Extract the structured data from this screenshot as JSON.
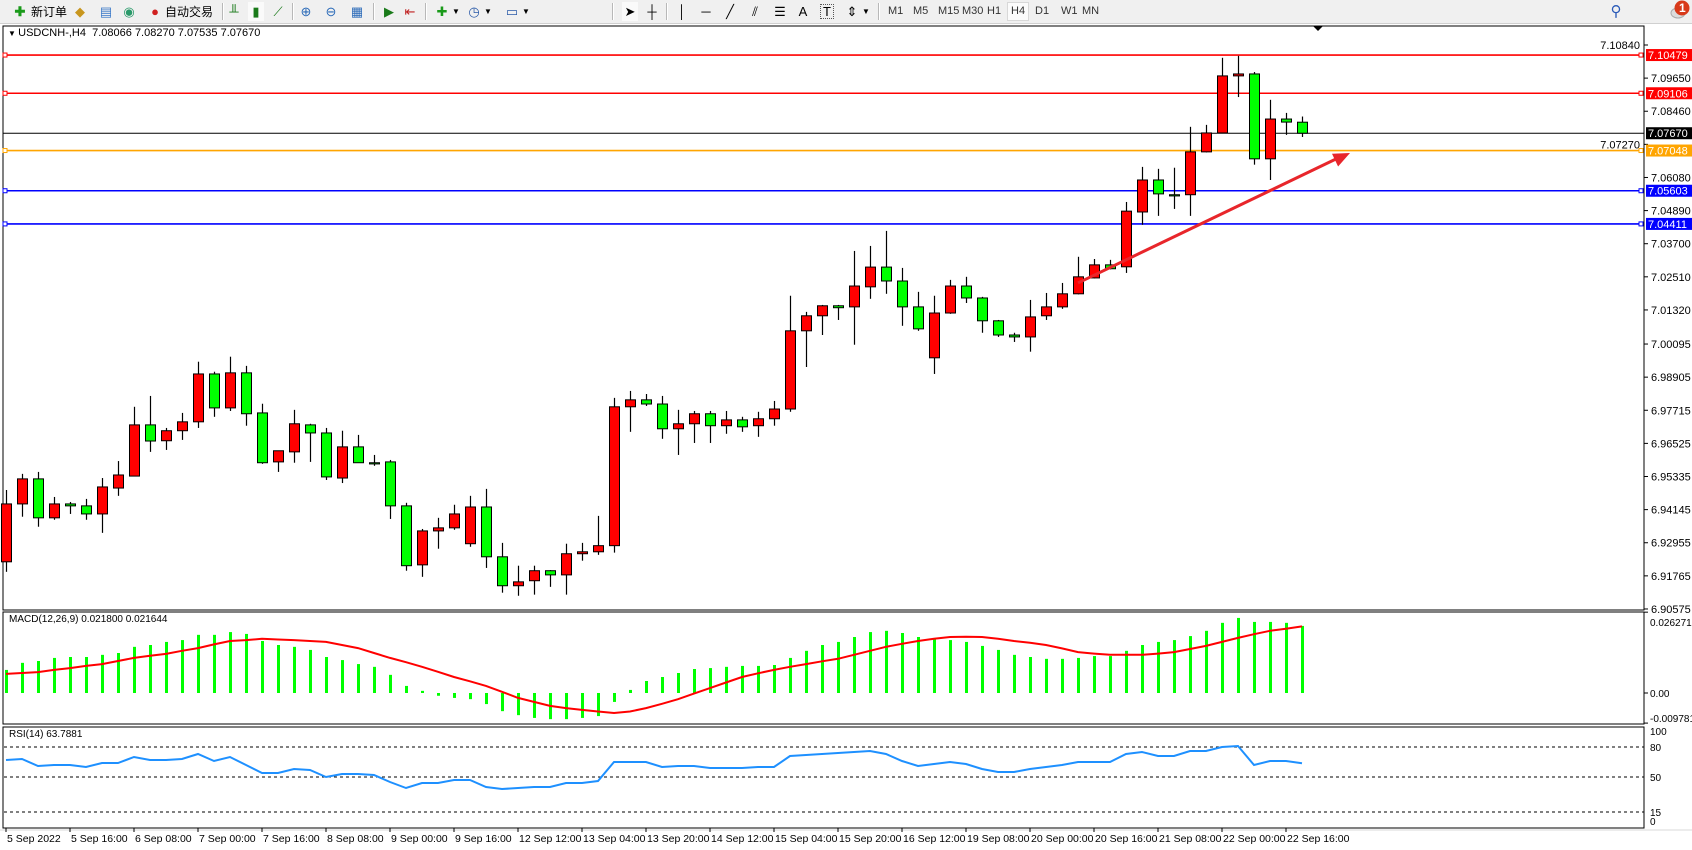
{
  "toolbar": {
    "new_order_label": "新订单",
    "autotrade_label": "自动交易",
    "timeframes": [
      "M1",
      "M5",
      "M15",
      "M30",
      "H1",
      "H4",
      "D1",
      "W1",
      "MN"
    ],
    "active_timeframe": "H4",
    "icons": [
      "new-order-icon",
      "gold-icon",
      "data-window-icon",
      "signals-icon",
      "autotrade-icon",
      "bar-chart-icon",
      "candlestick-icon",
      "line-chart-icon",
      "zoom-in-icon",
      "zoom-out-icon",
      "tile-windows-icon",
      "autoscroll-icon",
      "chart-shift-icon",
      "indicators-icon",
      "periods-icon",
      "templates-icon",
      "cursor-icon",
      "crosshair-icon",
      "vertical-line-icon",
      "horizontal-line-icon",
      "trendline-icon",
      "equidistant-channel-icon",
      "fibonacci-icon",
      "text-icon",
      "text-label-icon",
      "arrows-icon",
      "search-icon",
      "notification-icon"
    ]
  },
  "notifications": {
    "count": "1"
  },
  "header": {
    "symbol": "USDCNH-,H4",
    "open": "7.08066",
    "high": "7.08270",
    "low": "7.07535",
    "close": "7.07670"
  },
  "macd_label": "MACD(12,26,9) 0.021800 0.021644",
  "rsi_label": "RSI(14) 63.7881",
  "colors": {
    "bull": "#ff0000",
    "bear": "#00ff00",
    "resistance": "#ff0000",
    "pivot": "#ffa500",
    "support": "#0000ff",
    "macd_hist": "#00ff00",
    "macd_signal": "#ff0000",
    "rsi": "#1e90ff",
    "trend_arrow": "#e8262b"
  },
  "chart_data": {
    "type": "candlestick",
    "symbol": "USDCNH-",
    "timeframe": "H4",
    "candle_format": [
      "open",
      "high",
      "low",
      "close"
    ],
    "candles": [
      [
        6.9227,
        6.9485,
        6.9191,
        6.9435
      ],
      [
        6.9435,
        6.9543,
        6.9389,
        6.9525
      ],
      [
        6.9525,
        6.955,
        6.9353,
        6.9385
      ],
      [
        6.9385,
        6.946,
        6.9378,
        6.9435
      ],
      [
        6.9435,
        6.9442,
        6.9399,
        6.9428
      ],
      [
        6.9428,
        6.9453,
        6.9378,
        6.9399
      ],
      [
        6.9399,
        6.9528,
        6.9331,
        6.9496
      ],
      [
        6.9492,
        6.9589,
        6.9464,
        6.9539
      ],
      [
        6.9535,
        6.9784,
        6.9535,
        6.9719
      ],
      [
        6.9719,
        6.9823,
        6.9622,
        6.9661
      ],
      [
        6.9662,
        6.9708,
        6.9629,
        6.9698
      ],
      [
        6.9698,
        6.9762,
        6.9665,
        6.973
      ],
      [
        6.973,
        6.9946,
        6.9708,
        6.9902
      ],
      [
        6.9902,
        6.991,
        6.9748,
        6.978
      ],
      [
        6.978,
        6.9964,
        6.9769,
        6.9906
      ],
      [
        6.9906,
        6.9931,
        6.9716,
        6.9759
      ],
      [
        6.9762,
        6.9795,
        6.9579,
        6.9583
      ],
      [
        6.9586,
        6.9626,
        6.955,
        6.9626
      ],
      [
        6.9622,
        6.9773,
        6.9583,
        6.9723
      ],
      [
        6.9719,
        6.9723,
        6.9586,
        6.969
      ],
      [
        6.969,
        6.9708,
        6.9521,
        6.9532
      ],
      [
        6.9528,
        6.9698,
        6.951,
        6.964
      ],
      [
        6.964,
        6.9683,
        6.9583,
        6.9583
      ],
      [
        6.9583,
        6.9611,
        6.9572,
        6.9581
      ],
      [
        6.9586,
        6.9593,
        6.9381,
        6.9428
      ],
      [
        6.9428,
        6.9439,
        6.9195,
        6.9213
      ],
      [
        6.9216,
        6.9345,
        6.9173,
        6.9338
      ],
      [
        6.9338,
        6.9385,
        6.9274,
        6.9349
      ],
      [
        6.9349,
        6.9432,
        6.9342,
        6.9399
      ],
      [
        6.9292,
        6.9464,
        6.9281,
        6.9424
      ],
      [
        6.9424,
        6.9489,
        6.9205,
        6.9245
      ],
      [
        6.9245,
        6.9295,
        6.9116,
        6.9141
      ],
      [
        6.9141,
        6.9213,
        6.9105,
        6.9155
      ],
      [
        6.9159,
        6.9213,
        6.9109,
        6.9195
      ],
      [
        6.9195,
        6.9197,
        6.9137,
        6.918
      ],
      [
        6.918,
        6.9292,
        6.9109,
        6.9256
      ],
      [
        6.9256,
        6.9295,
        6.9231,
        6.9263
      ],
      [
        6.9263,
        6.9392,
        6.9252,
        6.9285
      ],
      [
        6.9285,
        6.9816,
        6.926,
        6.9784
      ],
      [
        6.9784,
        6.9841,
        6.9694,
        6.9809
      ],
      [
        6.9809,
        6.983,
        6.9787,
        6.9794
      ],
      [
        6.9794,
        6.9823,
        6.9669,
        6.9705
      ],
      [
        6.9705,
        6.9773,
        6.9611,
        6.9723
      ],
      [
        6.9723,
        6.9769,
        6.9654,
        6.9759
      ],
      [
        6.9759,
        6.9769,
        6.9654,
        6.9716
      ],
      [
        6.9716,
        6.9769,
        6.9687,
        6.9737
      ],
      [
        6.9737,
        6.9748,
        6.9694,
        6.9712
      ],
      [
        6.9716,
        6.9766,
        6.9676,
        6.9741
      ],
      [
        6.9741,
        6.9805,
        6.9716,
        6.9776
      ],
      [
        6.9776,
        7.0183,
        6.9766,
        7.0057
      ],
      [
        7.0057,
        7.0125,
        6.9927,
        7.0111
      ],
      [
        7.0111,
        7.015,
        7.0042,
        7.0147
      ],
      [
        7.0147,
        7.015,
        7.0096,
        7.014
      ],
      [
        7.0143,
        7.0344,
        7.0007,
        7.0218
      ],
      [
        7.0215,
        7.0362,
        7.0172,
        7.0286
      ],
      [
        7.0286,
        7.0416,
        7.019,
        7.0236
      ],
      [
        7.0236,
        7.0283,
        7.0075,
        7.0143
      ],
      [
        7.0143,
        7.0197,
        7.0057,
        7.0064
      ],
      [
        6.996,
        7.0183,
        6.9902,
        7.0121
      ],
      [
        7.0121,
        7.024,
        7.0118,
        7.0218
      ],
      [
        7.0218,
        7.0251,
        7.0157,
        7.0175
      ],
      [
        7.0175,
        7.0179,
        7.005,
        7.0093
      ],
      [
        7.0093,
        7.0096,
        7.0035,
        7.0042
      ],
      [
        7.0042,
        7.005,
        7.0017,
        7.0035
      ],
      [
        7.0035,
        7.0168,
        6.9982,
        7.0107
      ],
      [
        7.0111,
        7.0193,
        7.0096,
        7.0143
      ],
      [
        7.0143,
        7.0229,
        7.0136,
        7.019
      ],
      [
        7.019,
        7.0323,
        7.0188,
        7.0251
      ],
      [
        7.0247,
        7.0315,
        7.0245,
        7.0294
      ],
      [
        7.0294,
        7.0312,
        7.0278,
        7.028
      ],
      [
        7.0287,
        7.052,
        7.0265,
        7.0487
      ],
      [
        7.0484,
        7.0646,
        7.0438,
        7.0599
      ],
      [
        7.0599,
        7.0639,
        7.047,
        7.0549
      ],
      [
        7.0546,
        7.0643,
        7.0495,
        7.0544
      ],
      [
        7.0546,
        7.079,
        7.047,
        7.07
      ],
      [
        7.07,
        7.0797,
        7.0698,
        7.0768
      ],
      [
        7.0768,
        7.1038,
        7.0766,
        7.0973
      ],
      [
        7.0973,
        7.1045,
        7.0897,
        7.098
      ],
      [
        7.098,
        7.0987,
        7.0654,
        7.0675
      ],
      [
        7.0675,
        7.0887,
        7.0599,
        7.0818
      ],
      [
        7.0818,
        7.084,
        7.0761,
        7.0807
      ],
      [
        7.08066,
        7.0827,
        7.07535,
        7.0767
      ]
    ],
    "x_tick_every_bars": 4,
    "x_tick_labels": [
      "5 Sep 2022",
      "5 Sep 16:00",
      "6 Sep 08:00",
      "7 Sep 00:00",
      "7 Sep 16:00",
      "8 Sep 08:00",
      "9 Sep 00:00",
      "9 Sep 16:00",
      "12 Sep 12:00",
      "13 Sep 04:00",
      "13 Sep 20:00",
      "14 Sep 12:00",
      "15 Sep 04:00",
      "15 Sep 20:00",
      "16 Sep 12:00",
      "19 Sep 08:00",
      "20 Sep 00:00",
      "20 Sep 16:00",
      "21 Sep 08:00",
      "22 Sep 00:00",
      "22 Sep 16:00"
    ],
    "y_range": [
      6.90575,
      7.1084
    ],
    "y_tick_labels": [
      "7.10840",
      "7.09650",
      "7.08460",
      "7.07270",
      "7.06080",
      "7.04890",
      "7.03700",
      "7.02510",
      "7.01320",
      "7.00095",
      "6.98905",
      "6.97715",
      "6.96525",
      "6.95335",
      "6.94145",
      "6.92955",
      "6.91765",
      "6.90575"
    ],
    "current_price": {
      "value": 7.0767,
      "label": "7.07670"
    },
    "horizontal_lines": [
      {
        "value": 7.10479,
        "label": "7.10479",
        "color": "#ff0000"
      },
      {
        "value": 7.09106,
        "label": "7.09106",
        "color": "#ff0000"
      },
      {
        "value": 7.07048,
        "label": "7.07048",
        "color": "#ffa500"
      },
      {
        "value": 7.05603,
        "label": "7.05603",
        "color": "#0000ff"
      },
      {
        "value": 7.04411,
        "label": "7.04411",
        "color": "#0000ff"
      }
    ],
    "trend_arrow": {
      "from": {
        "bar": 67,
        "price": 7.0229
      },
      "to": {
        "bar": 84,
        "price": 7.0696
      },
      "color": "#e8262b"
    },
    "macd": {
      "params": "12,26,9",
      "y_range": [
        -0.009781,
        0.026271
      ],
      "y_tick_labels": [
        "0.026271",
        "0.00",
        "-0.009781"
      ],
      "histogram": [
        0.0075,
        0.0098,
        0.0104,
        0.0114,
        0.0117,
        0.0117,
        0.0124,
        0.013,
        0.015,
        0.0156,
        0.0166,
        0.0172,
        0.0189,
        0.0189,
        0.0198,
        0.0192,
        0.0169,
        0.0156,
        0.015,
        0.014,
        0.0117,
        0.0107,
        0.0094,
        0.0085,
        0.0059,
        0.0023,
        0.0007,
        -0.0009,
        -0.0016,
        -0.002,
        -0.0036,
        -0.0059,
        -0.0072,
        -0.0081,
        -0.0085,
        -0.0085,
        -0.0081,
        -0.0075,
        -0.0029,
        0.001,
        0.0039,
        0.0052,
        0.0065,
        0.0078,
        0.0081,
        0.0085,
        0.0088,
        0.0088,
        0.0091,
        0.0114,
        0.0137,
        0.0156,
        0.0166,
        0.0182,
        0.0198,
        0.0202,
        0.0195,
        0.0182,
        0.0176,
        0.0172,
        0.0166,
        0.0153,
        0.014,
        0.0124,
        0.0117,
        0.0111,
        0.0111,
        0.0114,
        0.012,
        0.012,
        0.0137,
        0.0156,
        0.0166,
        0.0172,
        0.0185,
        0.0202,
        0.0228,
        0.0244,
        0.0231,
        0.0231,
        0.0228,
        0.0218
      ],
      "signal": [
        0.0062,
        0.0065,
        0.0068,
        0.0075,
        0.0081,
        0.0088,
        0.0094,
        0.0104,
        0.0114,
        0.0121,
        0.0127,
        0.0137,
        0.0146,
        0.0158,
        0.0169,
        0.0172,
        0.0176,
        0.0174,
        0.0172,
        0.0169,
        0.0166,
        0.0156,
        0.0146,
        0.013,
        0.0114,
        0.01,
        0.0085,
        0.0069,
        0.0052,
        0.0038,
        0.0023,
        0.0004,
        -0.0016,
        -0.0029,
        -0.0042,
        -0.0049,
        -0.0055,
        -0.006,
        -0.0065,
        -0.006,
        -0.0049,
        -0.0035,
        -0.002,
        -0.0002,
        0.0016,
        0.0034,
        0.0052,
        0.0064,
        0.0075,
        0.0085,
        0.0094,
        0.0103,
        0.0111,
        0.0124,
        0.0137,
        0.015,
        0.016,
        0.0169,
        0.0176,
        0.0182,
        0.0183,
        0.0182,
        0.0176,
        0.0169,
        0.0163,
        0.0156,
        0.0145,
        0.0133,
        0.0128,
        0.0124,
        0.0124,
        0.0124,
        0.0128,
        0.0133,
        0.0143,
        0.0153,
        0.0166,
        0.0179,
        0.0191,
        0.0202,
        0.0209,
        0.021644
      ]
    },
    "rsi": {
      "period": 14,
      "y_range": [
        0,
        100
      ],
      "levels": [
        80,
        50,
        15
      ],
      "y_tick_labels": [
        "100",
        "80",
        "50",
        "15",
        "0"
      ],
      "values": [
        67,
        68,
        61,
        62,
        62,
        60,
        64,
        64,
        70,
        67,
        67,
        68,
        73,
        66,
        70,
        62,
        54,
        54,
        58,
        57,
        50,
        53,
        53,
        52,
        45,
        39,
        44,
        44,
        47,
        47,
        40,
        38,
        39,
        40,
        40,
        44,
        44,
        46,
        65,
        65,
        65,
        60,
        61,
        61,
        59,
        59,
        59,
        60,
        60,
        71,
        72,
        73,
        74,
        75,
        76,
        73,
        66,
        61,
        63,
        65,
        63,
        58,
        55,
        55,
        58,
        60,
        62,
        65,
        65,
        65,
        73,
        75,
        71,
        71,
        76,
        76,
        80,
        81,
        62,
        66,
        66,
        63.7881
      ]
    }
  }
}
